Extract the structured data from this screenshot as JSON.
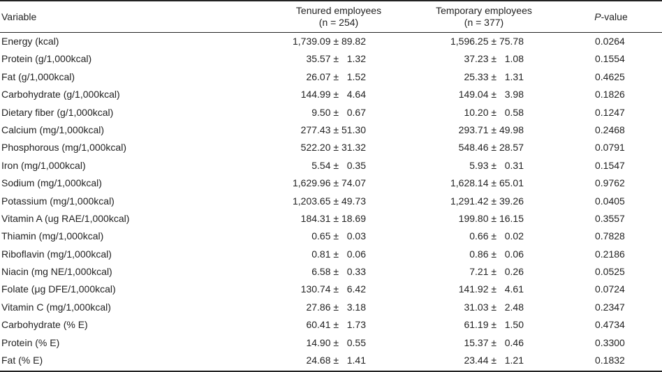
{
  "header": {
    "variable": "Variable",
    "tenured_line1": "Tenured employees",
    "tenured_line2": "(n = 254)",
    "temporary_line1": "Temporary employees",
    "temporary_line2": "(n = 377)",
    "p_italic": "P",
    "p_rest": "-value"
  },
  "rows": [
    {
      "variable": "Energy (kcal)",
      "tenured": "1,739.09 ± 89.82",
      "temporary": "1,596.25 ± 75.78",
      "p": "0.0264"
    },
    {
      "variable": "Protein (g/1,000kcal)",
      "tenured": "35.57 ±   1.32",
      "temporary": "37.23 ±   1.08",
      "p": "0.1554"
    },
    {
      "variable": "Fat (g/1,000kcal)",
      "tenured": "26.07 ±   1.52",
      "temporary": "25.33 ±   1.31",
      "p": "0.4625"
    },
    {
      "variable": "Carbohydrate (g/1,000kcal)",
      "tenured": "144.99 ±   4.64",
      "temporary": "149.04 ±   3.98",
      "p": "0.1826"
    },
    {
      "variable": "Dietary fiber (g/1,000kcal)",
      "tenured": "9.50 ±   0.67",
      "temporary": "10.20 ±   0.58",
      "p": "0.1247"
    },
    {
      "variable": "Calcium (mg/1,000kcal)",
      "tenured": "277.43 ± 51.30",
      "temporary": "293.71 ± 49.98",
      "p": "0.2468"
    },
    {
      "variable": "Phosphorous (mg/1,000kcal)",
      "tenured": "522.20 ± 31.32",
      "temporary": "548.46 ± 28.57",
      "p": "0.0791"
    },
    {
      "variable": "Iron (mg/1,000kcal)",
      "tenured": "5.54 ±   0.35",
      "temporary": "5.93 ±   0.31",
      "p": "0.1547"
    },
    {
      "variable": "Sodium (mg/1,000kcal)",
      "tenured": "1,629.96 ± 74.07",
      "temporary": "1,628.14 ± 65.01",
      "p": "0.9762"
    },
    {
      "variable": "Potassium (mg/1,000kcal)",
      "tenured": "1,203.65 ± 49.73",
      "temporary": "1,291.42 ± 39.26",
      "p": "0.0405"
    },
    {
      "variable": "Vitamin A (ug RAE/1,000kcal)",
      "tenured": "184.31 ± 18.69",
      "temporary": "199.80 ± 16.15",
      "p": "0.3557"
    },
    {
      "variable": "Thiamin (mg/1,000kcal)",
      "tenured": "0.65 ±   0.03",
      "temporary": "0.66 ±   0.02",
      "p": "0.7828"
    },
    {
      "variable": "Riboflavin (mg/1,000kcal)",
      "tenured": "0.81 ±   0.06",
      "temporary": "0.86 ±   0.06",
      "p": "0.2186"
    },
    {
      "variable": "Niacin (mg NE/1,000kcal)",
      "tenured": "6.58 ±   0.33",
      "temporary": "7.21 ±   0.26",
      "p": "0.0525"
    },
    {
      "variable": "Folate (μg DFE/1,000kcal)",
      "tenured": "130.74 ±   6.42",
      "temporary": "141.92 ±   4.61",
      "p": "0.0724"
    },
    {
      "variable": "Vitamin C (mg/1,000kcal)",
      "tenured": "27.86 ±   3.18",
      "temporary": "31.03 ±   2.48",
      "p": "0.2347"
    },
    {
      "variable": "Carbohydrate (% E)",
      "tenured": "60.41 ±   1.73",
      "temporary": "61.19 ±   1.50",
      "p": "0.4734"
    },
    {
      "variable": "Protein (% E)",
      "tenured": "14.90 ±   0.55",
      "temporary": "15.37 ±   0.46",
      "p": "0.3300"
    },
    {
      "variable": "Fat (% E)",
      "tenured": "24.68 ±   1.41",
      "temporary": "23.44 ±   1.21",
      "p": "0.1832"
    }
  ]
}
